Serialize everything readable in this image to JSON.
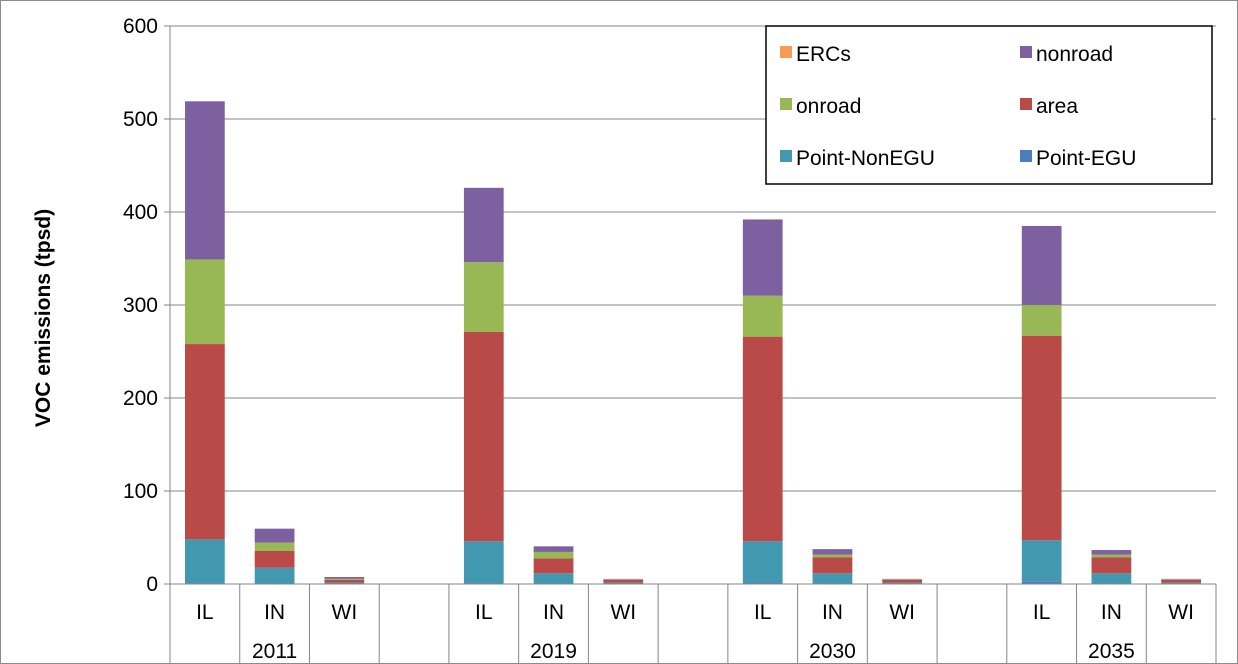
{
  "chart_data": {
    "type": "bar",
    "stacked": true,
    "ylabel": "VOC emissions (tpsd)",
    "ylim": [
      0,
      600
    ],
    "yticks": [
      0,
      100,
      200,
      300,
      400,
      500,
      600
    ],
    "grid": true,
    "legend_position": "top-right",
    "groups": [
      {
        "label": "2011",
        "categories": [
          "IL",
          "IN",
          "WI"
        ]
      },
      {
        "label": "2019",
        "categories": [
          "IL",
          "IN",
          "WI"
        ]
      },
      {
        "label": "2030",
        "categories": [
          "IL",
          "IN",
          "WI"
        ]
      },
      {
        "label": "2035",
        "categories": [
          "IL",
          "IN",
          "WI"
        ]
      }
    ],
    "series": [
      {
        "name": "Point-EGU",
        "color": "#4a7ebb",
        "values": [
          [
            1,
            0.5,
            0.5
          ],
          [
            1,
            0.5,
            0.5
          ],
          [
            2,
            0.5,
            0.5
          ],
          [
            3,
            0.5,
            0.5
          ]
        ]
      },
      {
        "name": "Point-NonEGU",
        "color": "#4198af",
        "values": [
          [
            47,
            17,
            1
          ],
          [
            45,
            11,
            1
          ],
          [
            44,
            11,
            1
          ],
          [
            44,
            11,
            1
          ]
        ]
      },
      {
        "name": "area",
        "color": "#ba4a47",
        "values": [
          [
            210,
            18,
            3
          ],
          [
            225,
            16,
            3
          ],
          [
            220,
            17,
            3
          ],
          [
            220,
            17,
            3
          ]
        ]
      },
      {
        "name": "onroad",
        "color": "#98b855",
        "values": [
          [
            91,
            9,
            1
          ],
          [
            75,
            7,
            0.5
          ],
          [
            44,
            3,
            0.5
          ],
          [
            33,
            3,
            0.5
          ]
        ]
      },
      {
        "name": "nonroad",
        "color": "#7d60a0",
        "values": [
          [
            170,
            15,
            2
          ],
          [
            80,
            6,
            0.5
          ],
          [
            82,
            6,
            0.5
          ],
          [
            85,
            5,
            0.5
          ]
        ]
      },
      {
        "name": "ERCs",
        "color": "#f59d56",
        "values": [
          [
            0,
            0,
            0
          ],
          [
            0,
            0,
            0
          ],
          [
            0,
            0,
            0
          ],
          [
            0,
            0,
            0
          ]
        ]
      }
    ]
  },
  "legend": [
    {
      "label": "ERCs",
      "color": "#f59d56"
    },
    {
      "label": "nonroad",
      "color": "#7d60a0"
    },
    {
      "label": "onroad",
      "color": "#98b855"
    },
    {
      "label": "area",
      "color": "#ba4a47"
    },
    {
      "label": "Point-NonEGU",
      "color": "#4198af"
    },
    {
      "label": "Point-EGU",
      "color": "#4a7ebb"
    }
  ]
}
